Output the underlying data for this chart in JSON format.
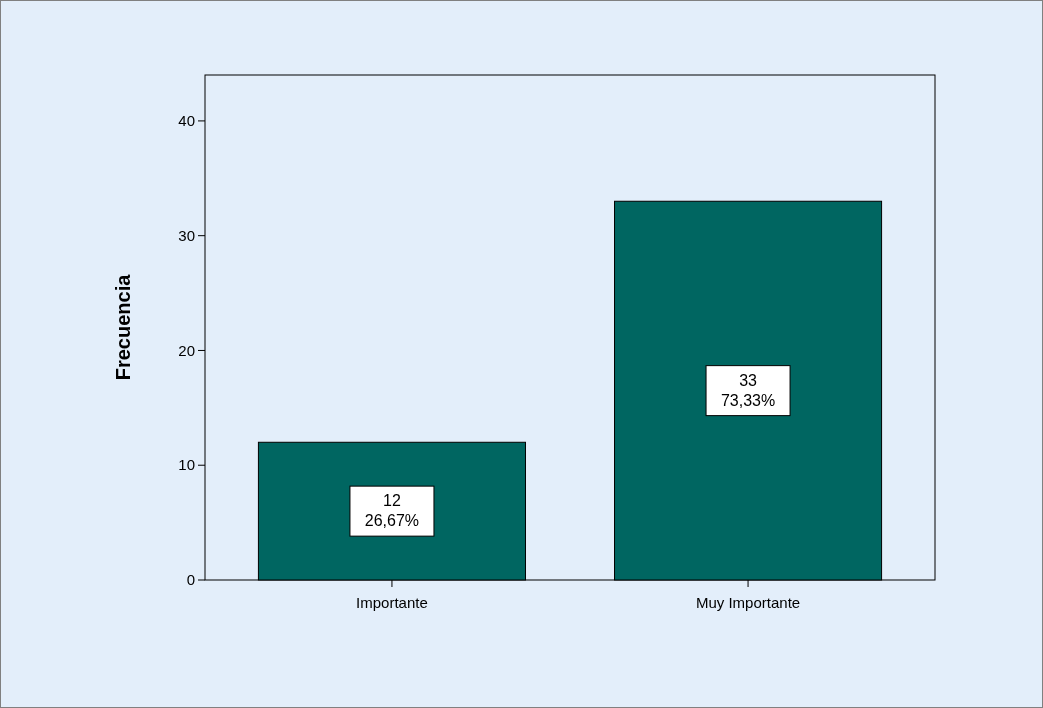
{
  "chart_data": {
    "type": "bar",
    "ylabel": "Frecuencia",
    "categories": [
      "Importante",
      "Muy Importante"
    ],
    "values": [
      12,
      33
    ],
    "color": "#006661",
    "value_labels": [
      "12\n26,67%",
      "33\n73,33%"
    ],
    "ylim": [
      0,
      44
    ],
    "yticks": [
      0,
      10,
      20,
      30,
      40
    ],
    "grid": false
  }
}
